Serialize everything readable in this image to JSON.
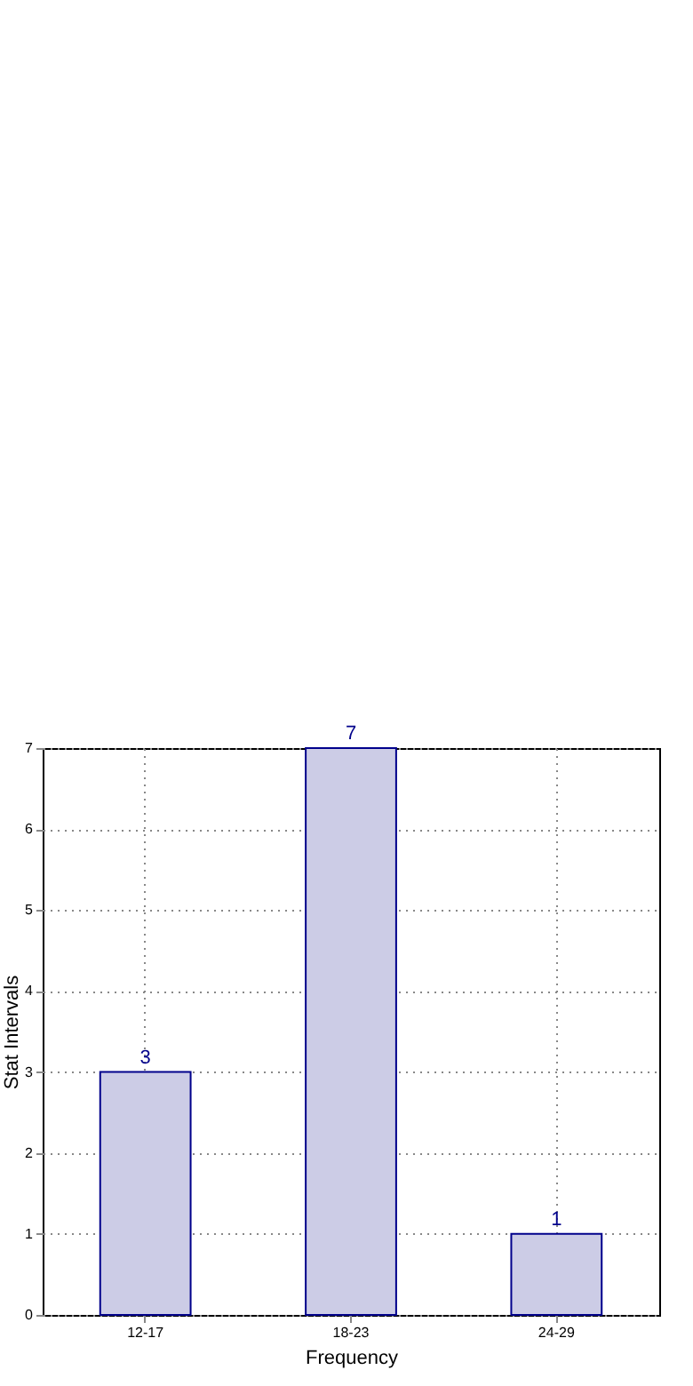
{
  "chart_data": {
    "type": "bar",
    "xlabel": "Frequency",
    "ylabel": "Stat Intervals",
    "categories": [
      "12-17",
      "18-23",
      "24-29"
    ],
    "values": [
      3,
      7,
      1
    ],
    "color": "#cccce6",
    "ylim": [
      0,
      7
    ],
    "yticks": [
      0,
      1,
      2,
      3,
      4,
      5,
      6,
      7
    ],
    "grid": true,
    "data_labels": true
  }
}
